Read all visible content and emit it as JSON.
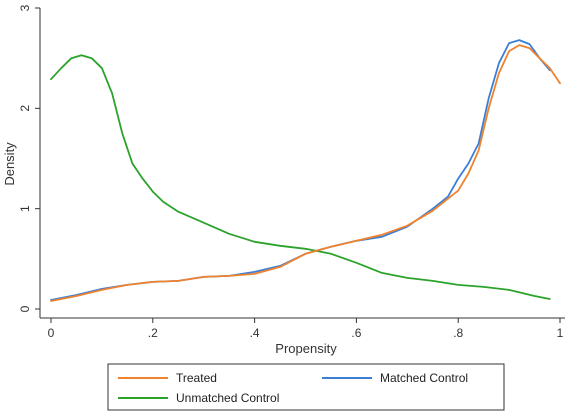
{
  "chart_data": {
    "type": "line",
    "title": "",
    "xlabel": "Propensity",
    "ylabel": "Density",
    "xlim": [
      0,
      1
    ],
    "ylim": [
      0,
      3
    ],
    "grid": false,
    "legend_position": "bottom",
    "x_ticks": [
      0,
      0.2,
      0.4,
      0.6,
      0.8,
      1
    ],
    "x_tick_labels": [
      "0",
      ".2",
      ".4",
      ".6",
      ".8",
      "1"
    ],
    "y_ticks": [
      0,
      1,
      2,
      3
    ],
    "y_tick_labels": [
      "0",
      "1",
      "2",
      "3"
    ],
    "series": [
      {
        "name": "Treated",
        "color": "#f0822e",
        "points": [
          [
            0.0,
            0.08
          ],
          [
            0.05,
            0.13
          ],
          [
            0.1,
            0.19
          ],
          [
            0.15,
            0.24
          ],
          [
            0.2,
            0.27
          ],
          [
            0.25,
            0.28
          ],
          [
            0.3,
            0.32
          ],
          [
            0.35,
            0.33
          ],
          [
            0.4,
            0.35
          ],
          [
            0.45,
            0.42
          ],
          [
            0.5,
            0.55
          ],
          [
            0.55,
            0.62
          ],
          [
            0.6,
            0.68
          ],
          [
            0.65,
            0.74
          ],
          [
            0.7,
            0.83
          ],
          [
            0.75,
            0.98
          ],
          [
            0.8,
            1.18
          ],
          [
            0.82,
            1.35
          ],
          [
            0.84,
            1.58
          ],
          [
            0.86,
            2.0
          ],
          [
            0.88,
            2.35
          ],
          [
            0.9,
            2.57
          ],
          [
            0.92,
            2.63
          ],
          [
            0.94,
            2.6
          ],
          [
            0.96,
            2.5
          ],
          [
            0.98,
            2.4
          ],
          [
            1.0,
            2.25
          ]
        ]
      },
      {
        "name": "Matched Control",
        "color": "#3a7fd5",
        "points": [
          [
            0.0,
            0.09
          ],
          [
            0.05,
            0.14
          ],
          [
            0.1,
            0.2
          ],
          [
            0.15,
            0.24
          ],
          [
            0.2,
            0.27
          ],
          [
            0.25,
            0.28
          ],
          [
            0.3,
            0.32
          ],
          [
            0.35,
            0.33
          ],
          [
            0.4,
            0.37
          ],
          [
            0.45,
            0.43
          ],
          [
            0.5,
            0.55
          ],
          [
            0.55,
            0.62
          ],
          [
            0.6,
            0.68
          ],
          [
            0.65,
            0.72
          ],
          [
            0.7,
            0.82
          ],
          [
            0.75,
            1.0
          ],
          [
            0.78,
            1.12
          ],
          [
            0.8,
            1.3
          ],
          [
            0.82,
            1.45
          ],
          [
            0.84,
            1.65
          ],
          [
            0.86,
            2.1
          ],
          [
            0.88,
            2.45
          ],
          [
            0.9,
            2.65
          ],
          [
            0.92,
            2.68
          ],
          [
            0.94,
            2.64
          ],
          [
            0.96,
            2.5
          ],
          [
            0.98,
            2.38
          ]
        ]
      },
      {
        "name": "Unmatched Control",
        "color": "#2ba32b",
        "points": [
          [
            0.0,
            2.29
          ],
          [
            0.02,
            2.4
          ],
          [
            0.04,
            2.5
          ],
          [
            0.06,
            2.53
          ],
          [
            0.08,
            2.5
          ],
          [
            0.1,
            2.4
          ],
          [
            0.12,
            2.15
          ],
          [
            0.14,
            1.75
          ],
          [
            0.16,
            1.45
          ],
          [
            0.18,
            1.3
          ],
          [
            0.2,
            1.17
          ],
          [
            0.22,
            1.07
          ],
          [
            0.25,
            0.97
          ],
          [
            0.3,
            0.86
          ],
          [
            0.35,
            0.75
          ],
          [
            0.4,
            0.67
          ],
          [
            0.45,
            0.63
          ],
          [
            0.5,
            0.6
          ],
          [
            0.55,
            0.55
          ],
          [
            0.6,
            0.46
          ],
          [
            0.65,
            0.36
          ],
          [
            0.7,
            0.31
          ],
          [
            0.75,
            0.28
          ],
          [
            0.8,
            0.24
          ],
          [
            0.85,
            0.22
          ],
          [
            0.9,
            0.19
          ],
          [
            0.95,
            0.13
          ],
          [
            0.98,
            0.1
          ]
        ]
      }
    ]
  }
}
